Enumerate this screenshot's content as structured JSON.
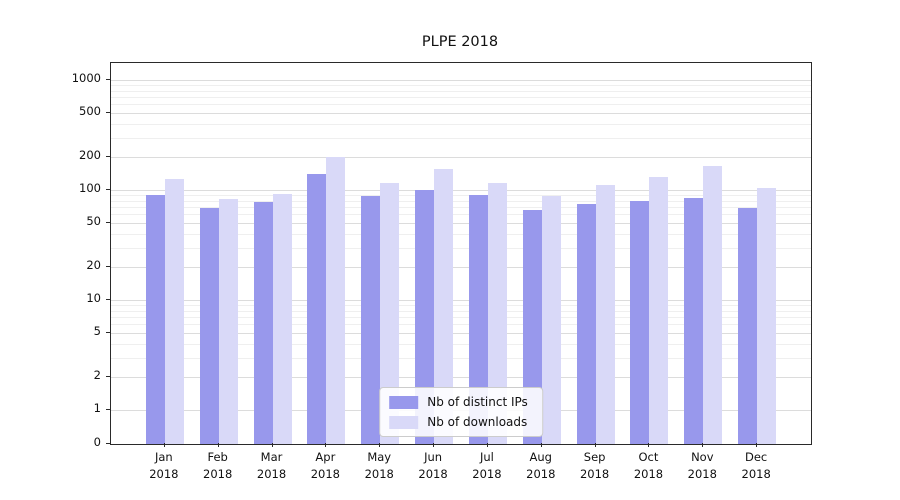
{
  "chart_data": {
    "type": "bar",
    "title": "PLPE 2018",
    "categories": [
      "Jan 2018",
      "Feb 2018",
      "Mar 2018",
      "Apr 2018",
      "May 2018",
      "Jun 2018",
      "Jul 2018",
      "Aug 2018",
      "Sep 2018",
      "Oct 2018",
      "Nov 2018",
      "Dec 2018"
    ],
    "series": [
      {
        "name": "Nb of distinct IPs",
        "color": "#9898ec",
        "values": [
          90,
          68,
          77,
          140,
          88,
          100,
          90,
          66,
          74,
          79,
          85,
          68
        ]
      },
      {
        "name": "Nb of downloads",
        "color": "#d9d9f8",
        "values": [
          125,
          82,
          92,
          200,
          115,
          155,
          115,
          89,
          112,
          130,
          165,
          105
        ]
      }
    ],
    "yticks": [
      0,
      1,
      2,
      5,
      10,
      20,
      50,
      100,
      200,
      500,
      1000
    ],
    "ylim": [
      0,
      1000
    ],
    "yscale": "symlog",
    "grid": true,
    "legend_position": "lower center",
    "grid_major_color": "#dcdcdc",
    "grid_minor_color": "#efefef"
  }
}
